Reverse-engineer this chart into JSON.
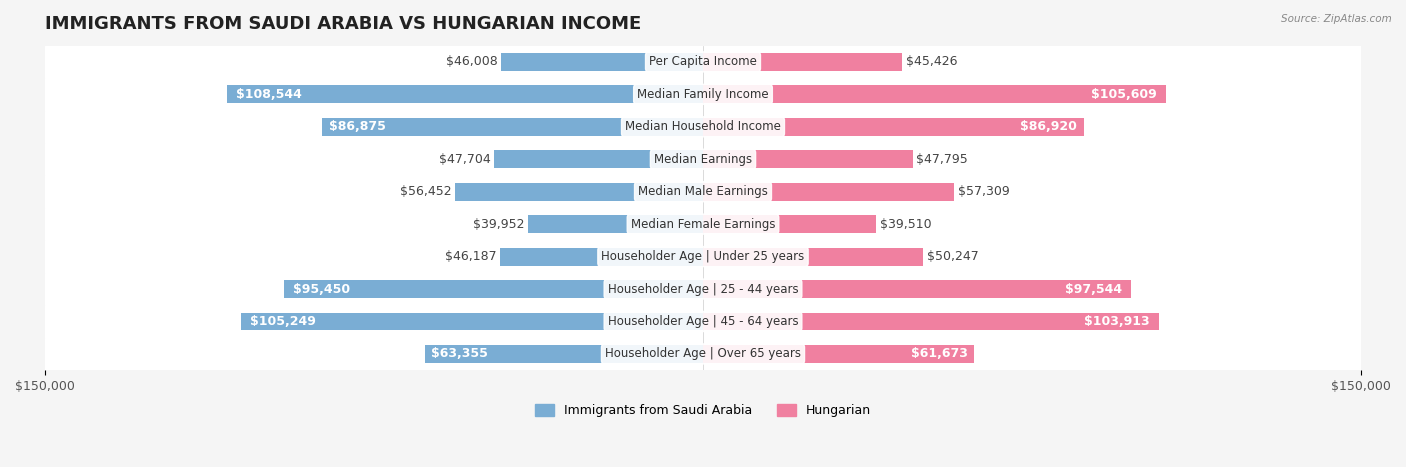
{
  "title": "IMMIGRANTS FROM SAUDI ARABIA VS HUNGARIAN INCOME",
  "source": "Source: ZipAtlas.com",
  "categories": [
    "Per Capita Income",
    "Median Family Income",
    "Median Household Income",
    "Median Earnings",
    "Median Male Earnings",
    "Median Female Earnings",
    "Householder Age | Under 25 years",
    "Householder Age | 25 - 44 years",
    "Householder Age | 45 - 64 years",
    "Householder Age | Over 65 years"
  ],
  "saudi_values": [
    46008,
    108544,
    86875,
    47704,
    56452,
    39952,
    46187,
    95450,
    105249,
    63355
  ],
  "hungarian_values": [
    45426,
    105609,
    86920,
    47795,
    57309,
    39510,
    50247,
    97544,
    103913,
    61673
  ],
  "saudi_color": "#7aadd4",
  "hungarian_color": "#f080a0",
  "saudi_label_color_threshold": 60000,
  "hungarian_label_color_threshold": 60000,
  "bar_height": 0.55,
  "xlim": 150000,
  "bg_color": "#f5f5f5",
  "row_bg_color": "#ffffff",
  "label_fontsize": 9,
  "title_fontsize": 13,
  "legend_fontsize": 9,
  "category_fontsize": 8.5
}
